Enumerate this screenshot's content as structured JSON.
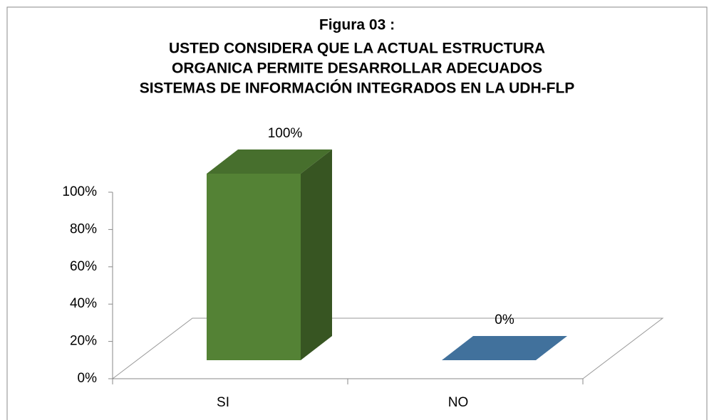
{
  "chart_data": {
    "type": "bar3d",
    "title": "Figura  03 :",
    "subtitle": [
      "USTED CONSIDERA QUE LA ACTUAL ESTRUCTURA",
      "ORGANICA PERMITE DESARROLLAR ADECUADOS",
      "SISTEMAS DE INFORMACIÓN INTEGRADOS EN LA UDH-FLP"
    ],
    "categories": [
      "SI",
      "NO"
    ],
    "values": [
      100,
      0
    ],
    "value_labels": [
      "100%",
      "0%"
    ],
    "colors": [
      "#548235",
      "#41719c"
    ],
    "ylim": [
      0,
      100
    ],
    "yticks": [
      {
        "value": 0,
        "label": "0%"
      },
      {
        "value": 20,
        "label": "20%"
      },
      {
        "value": 40,
        "label": "40%"
      },
      {
        "value": 60,
        "label": "60%"
      },
      {
        "value": 80,
        "label": "80%"
      },
      {
        "value": 100,
        "label": "100%"
      }
    ]
  }
}
